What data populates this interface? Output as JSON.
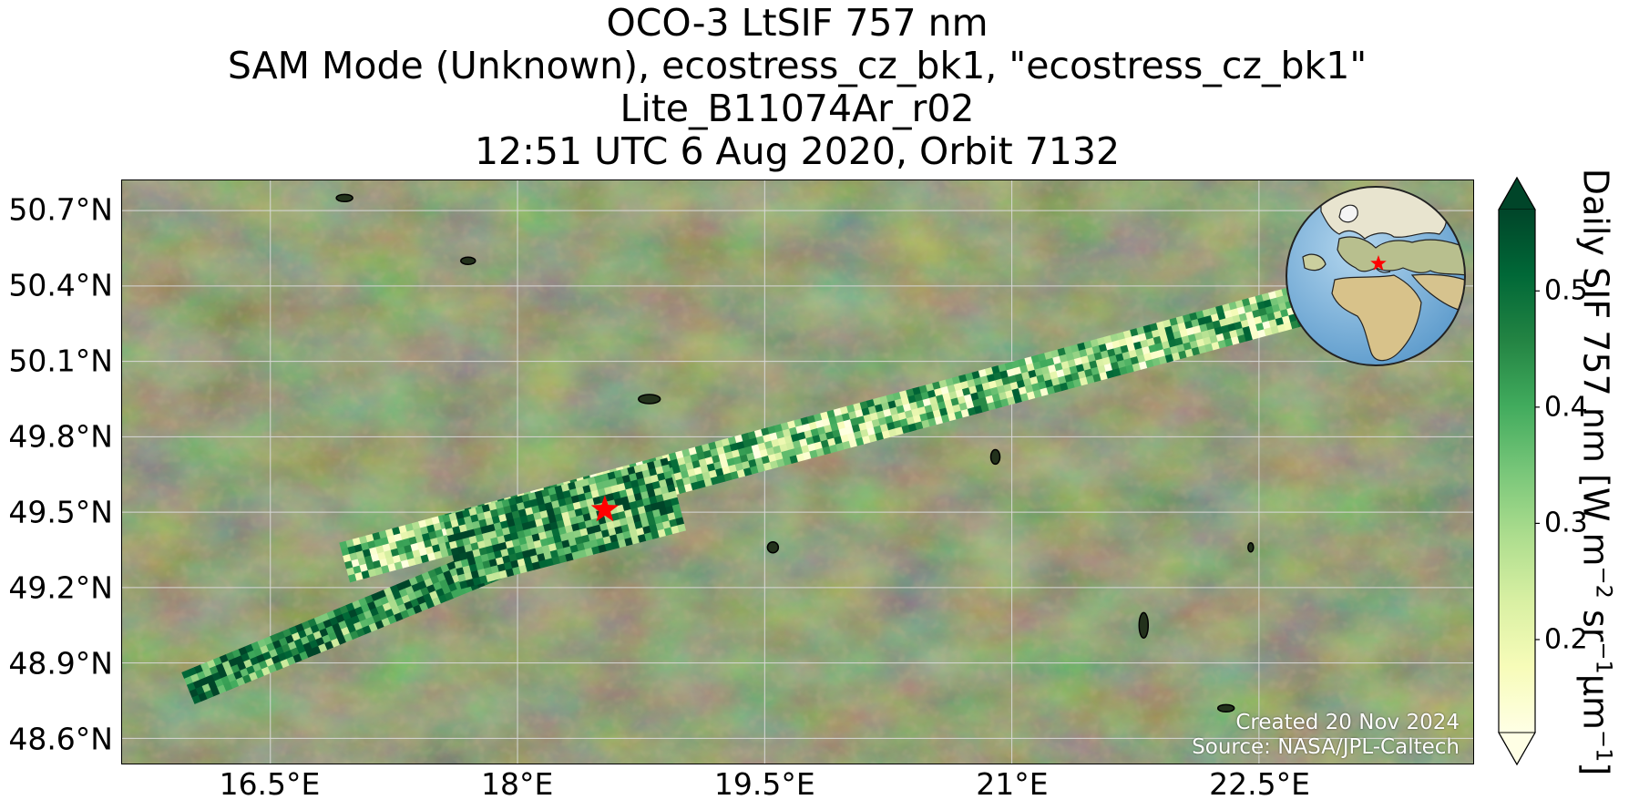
{
  "title": {
    "line1": "OCO-3 LtSIF 757 nm",
    "line2": "SAM Mode (Unknown), ecostress_cz_bk1, \"ecostress_cz_bk1\"",
    "line3": "Lite_B11074Ar_r02",
    "line4": "12:51 UTC 6 Aug 2020, Orbit 7132"
  },
  "map": {
    "lon_range": [
      15.6,
      23.8
    ],
    "lat_range": [
      48.5,
      50.82
    ],
    "lat_ticks": [
      {
        "value": 50.7,
        "label": "50.7°N"
      },
      {
        "value": 50.4,
        "label": "50.4°N"
      },
      {
        "value": 50.1,
        "label": "50.1°N"
      },
      {
        "value": 49.8,
        "label": "49.8°N"
      },
      {
        "value": 49.5,
        "label": "49.5°N"
      },
      {
        "value": 49.2,
        "label": "49.2°N"
      },
      {
        "value": 48.9,
        "label": "48.9°N"
      },
      {
        "value": 48.6,
        "label": "48.6°N"
      }
    ],
    "lon_ticks": [
      {
        "value": 16.5,
        "label": "16.5°E"
      },
      {
        "value": 18.0,
        "label": "18°E"
      },
      {
        "value": 19.5,
        "label": "19.5°E"
      },
      {
        "value": 21.0,
        "label": "21°E"
      },
      {
        "value": 22.5,
        "label": "22.5°E"
      }
    ],
    "target": {
      "lon": 18.53,
      "lat": 49.51,
      "marker": "red-star",
      "color": "#ff0000"
    },
    "gridlines": true
  },
  "chart_data": {
    "type": "heatmap",
    "variable": "Daily SIF 757 nm",
    "swaths": [
      {
        "start": {
          "lon": 16.0,
          "lat": 48.8
        },
        "end": {
          "lon": 18.5,
          "lat": 49.47
        },
        "width_deg": 0.09,
        "mean": 0.45
      },
      {
        "start": {
          "lon": 16.95,
          "lat": 49.3
        },
        "end": {
          "lon": 23.3,
          "lat": 50.42
        },
        "width_deg": 0.1,
        "mean": 0.33
      },
      {
        "start": {
          "lon": 17.6,
          "lat": 49.34
        },
        "end": {
          "lon": 18.95,
          "lat": 49.57
        },
        "width_deg": 0.2,
        "mean": 0.42
      }
    ],
    "colorbar": {
      "min": 0.12,
      "max": 0.57,
      "ticks": [
        {
          "value": 0.5,
          "label": "0.5"
        },
        {
          "value": 0.4,
          "label": "0.4"
        },
        {
          "value": 0.3,
          "label": "0.3"
        },
        {
          "value": 0.2,
          "label": "0.2"
        }
      ],
      "label_text": "Daily SIF 757 nm [W m",
      "sup1": "−2",
      "label_mid": " sr",
      "sup2": "−1",
      "label_end": "μm",
      "sup3": "−1",
      "label_close": "]",
      "colormap": "YlGn",
      "extend": "both"
    }
  },
  "credits": {
    "created": "Created 20 Nov 2024",
    "source": "Source: NASA/JPL-Caltech"
  },
  "colors": {
    "terrain_dark": "#2f3d22",
    "terrain_mid": "#4e5a33",
    "terrain_light": "#7a6a46",
    "ocean": "#7fb4d9",
    "land_globe": "#d9d4a8"
  },
  "inset": {
    "type": "globe",
    "marker": "red-star"
  }
}
